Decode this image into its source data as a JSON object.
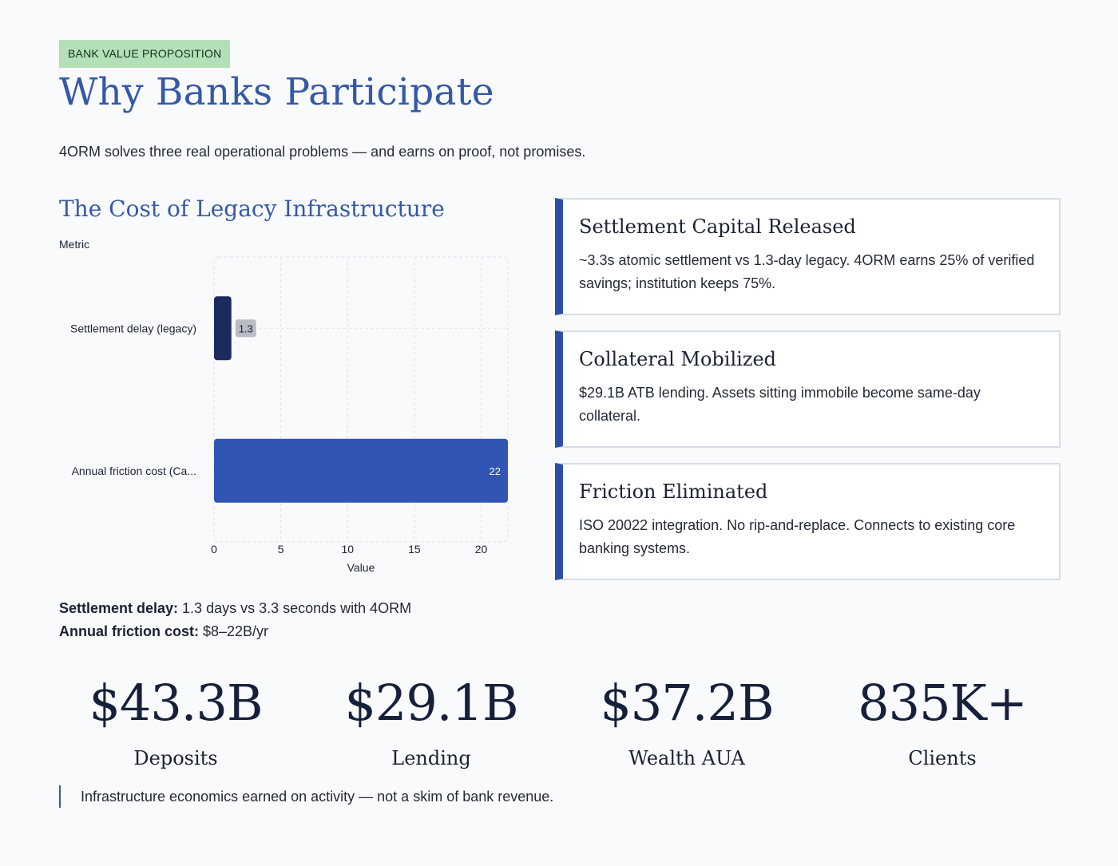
{
  "badge": "BANK VALUE PROPOSITION",
  "title": "Why Banks Participate",
  "subtitle": "4ORM solves three real operational problems — and earns on proof, not promises.",
  "chart_section_title": "The Cost of Legacy Infrastructure",
  "chart_data": {
    "type": "bar",
    "orientation": "horizontal",
    "ylabel": "Metric",
    "xlabel": "Value",
    "categories": [
      "Settlement delay (legacy)",
      "Annual friction cost (Ca..."
    ],
    "values": [
      1.3,
      22
    ],
    "value_labels": [
      "1.3",
      "22"
    ],
    "bar_colors": [
      "#1c2b5e",
      "#3055b3"
    ],
    "xlim": [
      0,
      22
    ],
    "xticks": [
      0,
      5,
      10,
      15,
      20
    ],
    "grid": true
  },
  "notes": [
    {
      "label": "Settlement delay:",
      "text": " 1.3 days vs 3.3 seconds with 4ORM"
    },
    {
      "label": "Annual friction cost:",
      "text": " $8–22B/yr"
    }
  ],
  "cards": [
    {
      "title": "Settlement Capital Released",
      "body": "~3.3s atomic settlement vs 1.3-day legacy. 4ORM earns 25% of verified savings; institution keeps 75%."
    },
    {
      "title": "Collateral Mobilized",
      "body": "$29.1B ATB lending. Assets sitting immobile become same-day collateral."
    },
    {
      "title": "Friction Eliminated",
      "body": "ISO 20022 integration. No rip-and-replace. Connects to existing core banking systems."
    }
  ],
  "stats": [
    {
      "value": "$43.3B",
      "label": "Deposits"
    },
    {
      "value": "$29.1B",
      "label": "Lending"
    },
    {
      "value": "$37.2B",
      "label": "Wealth AUA"
    },
    {
      "value": "835K+",
      "label": "Clients"
    }
  ],
  "quote": "Infrastructure economics earned on activity — not a skim of bank revenue.",
  "colors": {
    "accent": "#3559a8",
    "card_border": "#2e4ea6",
    "badge_bg": "#b3e0b9"
  }
}
